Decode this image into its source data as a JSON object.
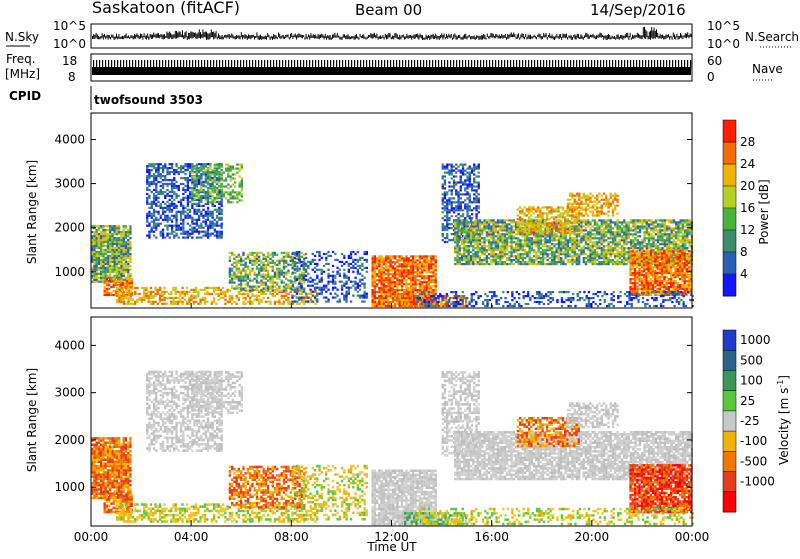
{
  "header": {
    "station": "Saskatoon (fitACF)",
    "beam": "Beam 00",
    "date": "14/Sep/2016"
  },
  "strips": {
    "nsky_label": "N.Sky",
    "nsearch_label": "N.Search",
    "noise_ticks": [
      "10^5",
      "10^0"
    ],
    "freq_label_1": "Freq.",
    "freq_label_2": "[MHz]",
    "freq_ticks": [
      "18",
      "8"
    ],
    "nave_label": "Nave",
    "nave_ticks": [
      "60",
      "0"
    ],
    "cpid_label": "CPID",
    "cpid_value": "twofsound 3503"
  },
  "chart_data": [
    {
      "type": "heatmap",
      "panel": "power",
      "xlabel": "",
      "ylabel": "Slant Range [km]",
      "xlim": [
        "00:00",
        "24:00"
      ],
      "ylim": [
        180,
        4600
      ],
      "y_ticks": [
        1000,
        2000,
        3000,
        4000
      ],
      "colorbar": {
        "label": "Power [dB]",
        "ticks": [
          4,
          8,
          12,
          16,
          20,
          24,
          28
        ],
        "colors": [
          "#1414ff",
          "#2a5fb8",
          "#3c8c6e",
          "#47b43c",
          "#b4d21e",
          "#f0b400",
          "#f06e00",
          "#ff1e00"
        ]
      }
    },
    {
      "type": "heatmap",
      "panel": "velocity",
      "xlabel": "Time UT",
      "ylabel": "Slant Range [km]",
      "x_ticks": [
        "00:00",
        "04:00",
        "08:00",
        "12:00",
        "16:00",
        "20:00",
        "00:00"
      ],
      "ylim": [
        180,
        4600
      ],
      "y_ticks": [
        1000,
        2000,
        3000,
        4000
      ],
      "colorbar": {
        "label": "Velocity [m s",
        "label_exp": "-1",
        "label_close": "]",
        "ticks": [
          "1000",
          "500",
          "100",
          "25",
          "-25",
          "-100",
          "-500",
          "-1000"
        ],
        "colors": [
          "#1e3cc8",
          "#28648c",
          "#3c965a",
          "#5ac83c",
          "#c8c8c8",
          "#f0b400",
          "#f07800",
          "#e63c1e",
          "#ff0000"
        ]
      }
    }
  ]
}
